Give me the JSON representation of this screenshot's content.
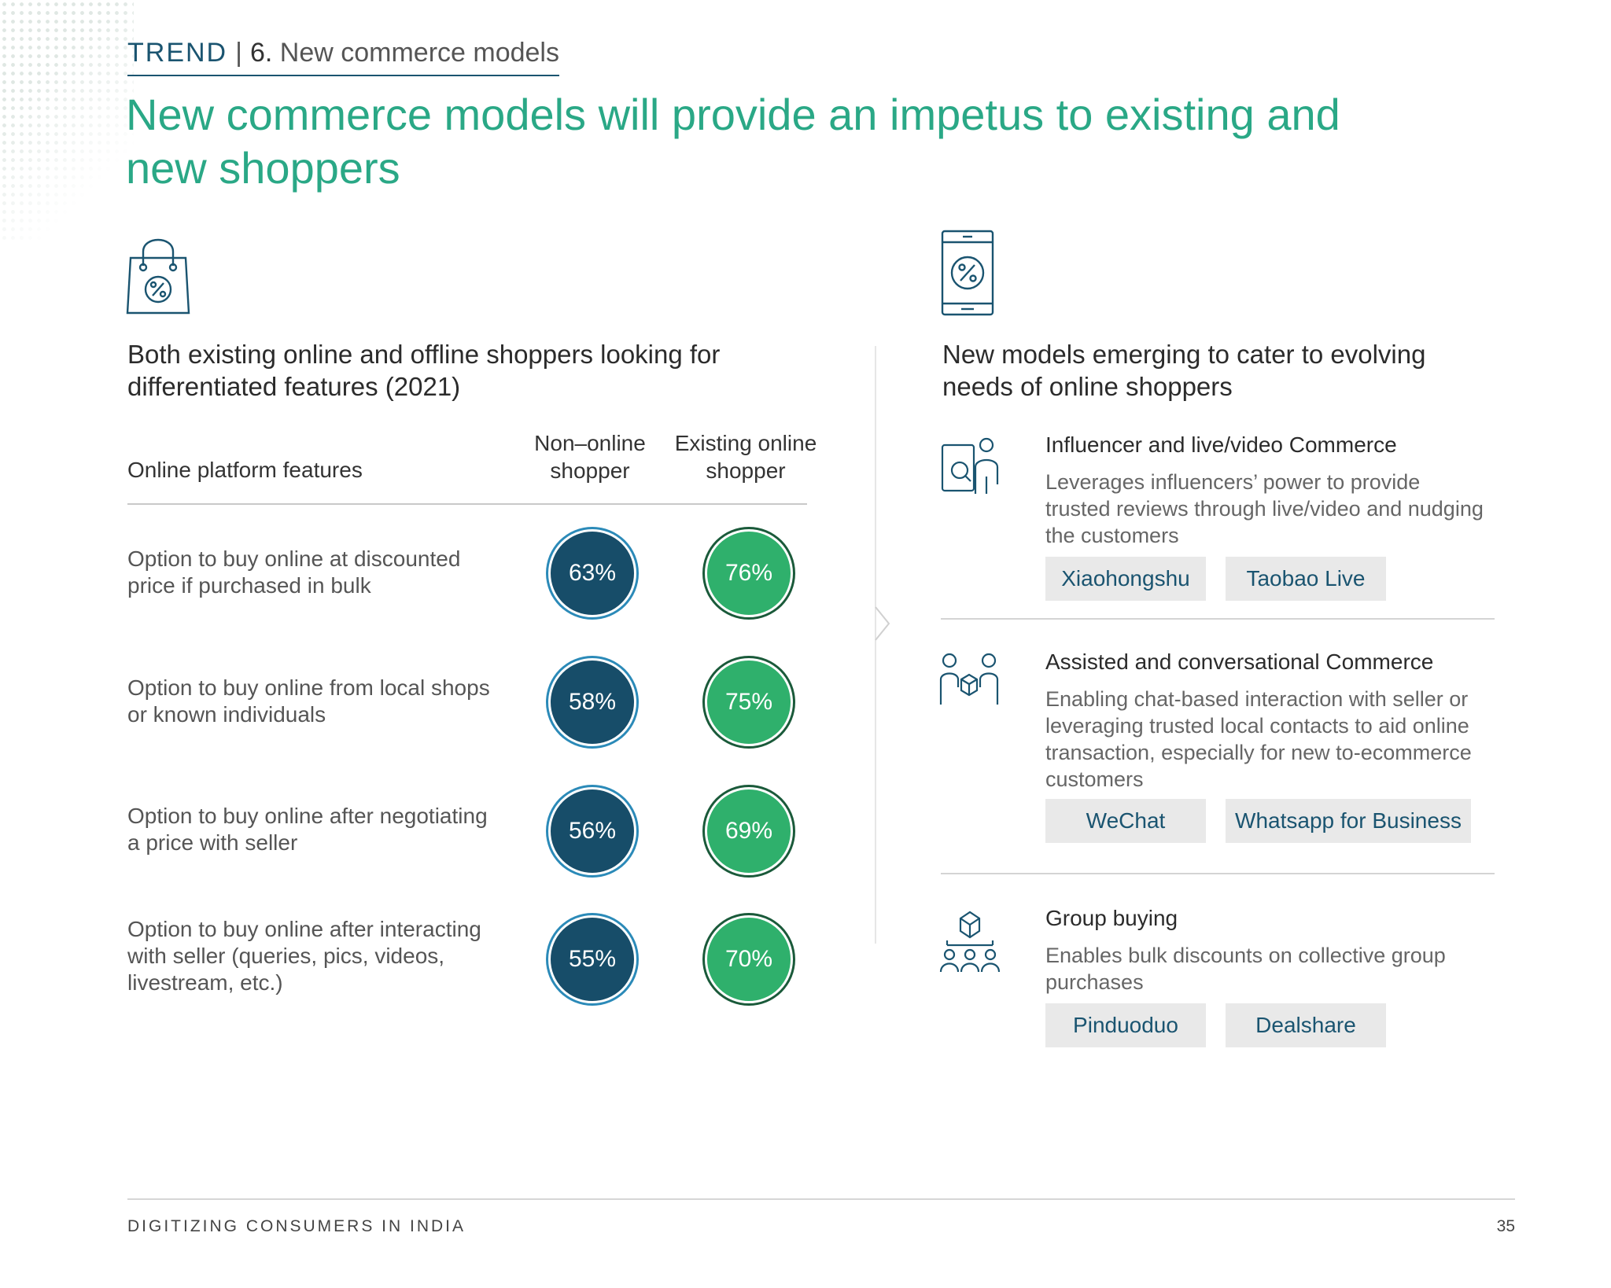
{
  "header": {
    "trend_label": "TREND",
    "trend_separator": "|",
    "trend_number": "6.",
    "trend_title": "New commerce models",
    "title": "New commerce models will provide an impetus to existing and new shoppers"
  },
  "left": {
    "icon": "shopping-bag-percent-icon",
    "subheading": "Both existing online and offline shoppers looking for differentiated features (2021)",
    "col_features": "Online platform features",
    "col_non_online": "Non–online shopper",
    "col_existing": "Existing online shopper",
    "rows": [
      {
        "feature": "Option to buy online at discounted price if purchased in bulk",
        "non_online": "63%",
        "existing": "76%"
      },
      {
        "feature": "Option to buy online from local shops or known individuals",
        "non_online": "58%",
        "existing": "75%"
      },
      {
        "feature": "Option to buy online after negotiating a price with seller",
        "non_online": "56%",
        "existing": "69%"
      },
      {
        "feature": "Option to buy online after interacting with seller (queries, pics, videos, livestream, etc.)",
        "non_online": "55%",
        "existing": "70%"
      }
    ]
  },
  "right": {
    "icon": "phone-percent-icon",
    "subheading": "New models emerging to cater to evolving needs of online shoppers",
    "models": [
      {
        "icon": "influencer-video-icon",
        "title": "Influencer and live/video Commerce",
        "description": "Leverages influencers’ power to provide trusted reviews through live/video and nudging the customers",
        "tags": [
          "Xiaohongshu",
          "Taobao Live"
        ]
      },
      {
        "icon": "assisted-commerce-icon",
        "title": "Assisted and conversational Commerce",
        "description": "Enabling chat-based interaction with seller or leveraging trusted local contacts to aid online transaction, especially for new to-ecommerce customers",
        "tags": [
          "WeChat",
          "Whatsapp for Business"
        ]
      },
      {
        "icon": "group-buying-icon",
        "title": "Group buying",
        "description": "Enables bulk discounts on collective group purchases",
        "tags": [
          "Pinduoduo",
          "Dealshare"
        ]
      }
    ]
  },
  "footer": {
    "left": "DIGITIZING CONSUMERS IN INDIA",
    "page": "35"
  },
  "colors": {
    "accent_green": "#2aa886",
    "navy": "#1a5470",
    "circle_non_online": "#174d69",
    "circle_existing": "#2fb06c"
  }
}
